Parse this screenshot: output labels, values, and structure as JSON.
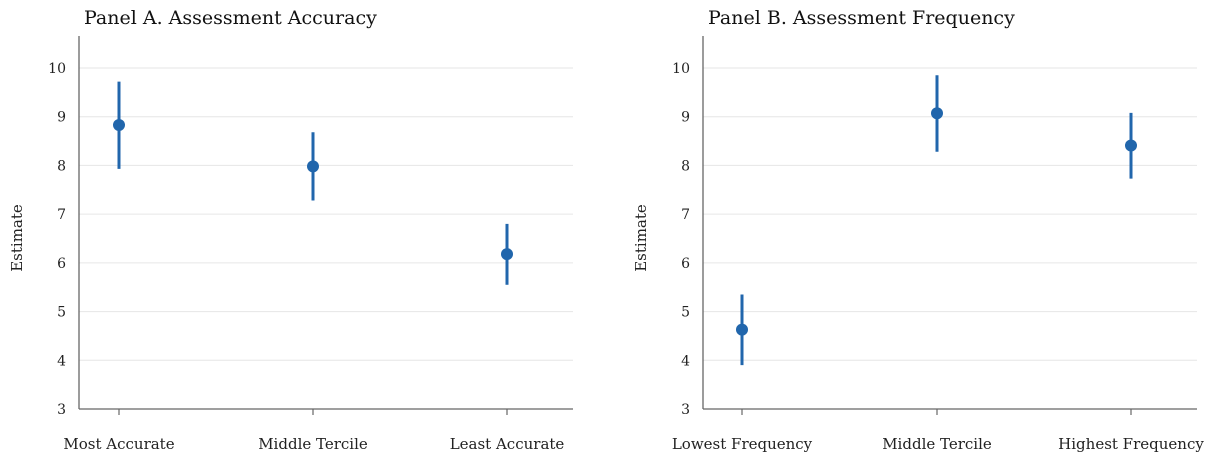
{
  "chart_data": [
    {
      "type": "scatter",
      "title": "Panel A. Assessment Accuracy",
      "xlabel": "",
      "ylabel": "Estimate",
      "ylim": [
        3,
        10.7
      ],
      "yticks": [
        3,
        4,
        5,
        6,
        7,
        8,
        9,
        10
      ],
      "grid": true,
      "categories": [
        "Most Accurate",
        "Middle Tercile",
        "Least Accurate"
      ],
      "estimates": [
        8.83,
        7.98,
        6.18
      ],
      "ci_low": [
        7.93,
        7.28,
        5.55
      ],
      "ci_high": [
        9.72,
        8.68,
        6.8
      ],
      "color": "#2166ac"
    },
    {
      "type": "scatter",
      "title": "Panel B. Assessment Frequency",
      "xlabel": "",
      "ylabel": "Estimate",
      "ylim": [
        3,
        10.7
      ],
      "yticks": [
        3,
        4,
        5,
        6,
        7,
        8,
        9,
        10
      ],
      "grid": true,
      "categories": [
        "Lowest Frequency",
        "Middle Tercile",
        "Highest Frequency"
      ],
      "estimates": [
        4.63,
        9.07,
        8.41
      ],
      "ci_low": [
        3.9,
        8.28,
        7.73
      ],
      "ci_high": [
        5.35,
        9.85,
        9.08
      ],
      "color": "#2166ac"
    }
  ]
}
